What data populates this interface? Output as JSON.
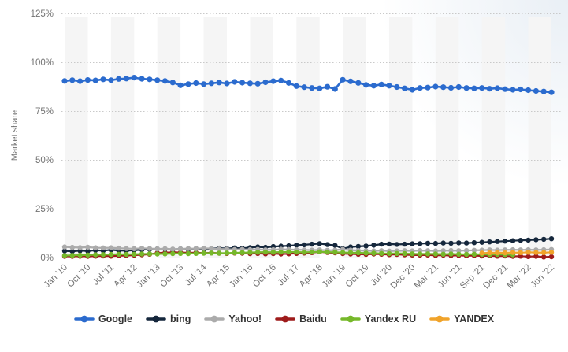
{
  "chart_data": {
    "type": "line",
    "title": "",
    "ylabel": "Market share",
    "xlabel": "",
    "ylim": [
      0,
      125
    ],
    "ytick_values": [
      0,
      25,
      50,
      75,
      100,
      125
    ],
    "ytick_labels": [
      "0%",
      "25%",
      "50%",
      "75%",
      "100%",
      "125%"
    ],
    "x_tick_labels": [
      "Jan '10",
      "Oct '10",
      "Jul '11",
      "Apr '12",
      "Jan '13",
      "Oct '13",
      "Jul '14",
      "Apr '15",
      "Jan '16",
      "Oct '16",
      "Jul '17",
      "Apr '18",
      "Jan '19",
      "Oct '19",
      "Jul '20",
      "Dec '20",
      "Mar '21",
      "Jun '21",
      "Sep '21",
      "Dec '21",
      "Mar '22",
      "Jun '22"
    ],
    "x_points_per_tick": 3,
    "grid": "horizontal-dotted",
    "plot_background": "alternating-vertical-stripes",
    "stripe_color": "#f5f5f5",
    "legend_position": "bottom",
    "series": [
      {
        "name": "Google",
        "color": "#2b6bce",
        "marker_radius": 3.6,
        "line_width": 2.6,
        "values": [
          90.4,
          90.8,
          90.3,
          90.9,
          90.7,
          91.2,
          90.8,
          91.4,
          91.6,
          92.1,
          91.5,
          91.2,
          90.8,
          90.4,
          89.6,
          88.2,
          88.8,
          89.3,
          88.8,
          89.2,
          89.6,
          89.1,
          89.9,
          89.5,
          89.2,
          89.0,
          89.7,
          90.3,
          90.6,
          89.4,
          87.8,
          87.2,
          86.8,
          86.6,
          87.4,
          86.3,
          91.0,
          90.2,
          89.4,
          88.4,
          88.0,
          88.6,
          88.0,
          87.3,
          86.6,
          85.9,
          86.8,
          87.0,
          87.5,
          87.2,
          86.9,
          87.3,
          86.8,
          86.6,
          86.8,
          86.4,
          86.7,
          86.2,
          85.9,
          86.1,
          85.7,
          85.3,
          85.0,
          84.6
        ]
      },
      {
        "name": "bing",
        "color": "#15273c",
        "marker_radius": 3.2,
        "line_width": 2.2,
        "values": [
          3.4,
          3.2,
          3.5,
          3.3,
          3.7,
          3.5,
          3.9,
          3.6,
          3.5,
          3.7,
          4.0,
          4.2,
          4.4,
          4.3,
          4.1,
          4.4,
          4.2,
          4.5,
          4.3,
          4.6,
          4.8,
          4.6,
          4.9,
          4.7,
          5.1,
          5.4,
          5.2,
          5.6,
          5.8,
          6.0,
          6.3,
          6.5,
          6.8,
          7.1,
          6.6,
          6.2,
          4.5,
          5.4,
          5.7,
          5.9,
          6.3,
          6.8,
          6.9,
          6.7,
          6.8,
          7.0,
          7.1,
          7.3,
          7.2,
          7.4,
          7.3,
          7.5,
          7.4,
          7.6,
          7.8,
          8.0,
          8.2,
          8.4,
          8.6,
          8.8,
          8.9,
          9.1,
          9.3,
          9.6
        ]
      },
      {
        "name": "Yahoo!",
        "color": "#ababab",
        "marker_radius": 3.2,
        "line_width": 2.2,
        "values": [
          5.4,
          5.2,
          5.1,
          5.3,
          5.0,
          4.9,
          5.0,
          4.8,
          4.6,
          4.5,
          4.7,
          4.6,
          4.4,
          4.5,
          4.3,
          4.4,
          4.6,
          4.5,
          4.7,
          4.6,
          4.4,
          4.3,
          4.1,
          4.2,
          4.0,
          4.1,
          3.9,
          4.0,
          4.2,
          4.1,
          4.0,
          3.9,
          3.8,
          3.9,
          3.7,
          3.8,
          4.2,
          3.8,
          3.6,
          3.5,
          3.4,
          3.5,
          3.3,
          3.4,
          3.5,
          3.4,
          3.6,
          3.5,
          3.4,
          3.5,
          3.6,
          3.5,
          3.6,
          3.7,
          3.8,
          3.9,
          3.8,
          3.9,
          4.0,
          3.9,
          4.0,
          3.9,
          4.0,
          4.1
        ]
      },
      {
        "name": "Baidu",
        "color": "#9e1b1b",
        "marker_radius": 3.2,
        "line_width": 2.2,
        "values": [
          0.6,
          0.6,
          0.7,
          0.6,
          0.7,
          0.8,
          0.7,
          0.9,
          1.0,
          1.2,
          1.4,
          1.7,
          2.3,
          2.5,
          2.7,
          2.6,
          2.4,
          2.5,
          2.3,
          2.4,
          2.2,
          2.1,
          2.3,
          2.2,
          2.0,
          2.1,
          1.9,
          2.0,
          1.8,
          1.9,
          2.1,
          2.3,
          2.5,
          2.9,
          2.6,
          2.4,
          2.0,
          1.8,
          1.7,
          1.6,
          1.8,
          1.7,
          1.5,
          1.6,
          1.4,
          1.3,
          1.2,
          1.3,
          1.1,
          1.2,
          1.0,
          1.1,
          0.9,
          1.0,
          0.8,
          0.9,
          0.7,
          0.8,
          0.6,
          0.7,
          0.5,
          0.6,
          0.3,
          0.4
        ]
      },
      {
        "name": "Yandex RU",
        "color": "#76b82a",
        "marker_radius": 3.2,
        "line_width": 2.2,
        "values": [
          1.0,
          1.1,
          1.2,
          1.3,
          1.4,
          1.5,
          1.6,
          1.7,
          1.6,
          1.7,
          1.8,
          1.9,
          1.8,
          1.9,
          2.0,
          2.1,
          2.0,
          2.1,
          2.2,
          2.3,
          2.2,
          2.3,
          2.4,
          2.5,
          2.6,
          2.7,
          2.8,
          2.7,
          2.8,
          2.9,
          2.8,
          2.7,
          2.8,
          2.9,
          2.8,
          2.7,
          2.6,
          2.5,
          2.4,
          2.3,
          2.2,
          2.1,
          2.0,
          2.1,
          2.0,
          1.9,
          1.8,
          1.9,
          1.8,
          1.7,
          1.8,
          1.7,
          1.6,
          1.7,
          1.6,
          1.5,
          1.6,
          1.5,
          1.4,
          null,
          null,
          null,
          null,
          null
        ]
      },
      {
        "name": "YANDEX",
        "color": "#f0a32a",
        "marker_radius": 3.2,
        "line_width": 2.2,
        "values": [
          null,
          null,
          null,
          null,
          null,
          null,
          null,
          null,
          null,
          null,
          null,
          null,
          null,
          null,
          null,
          null,
          null,
          null,
          null,
          null,
          null,
          null,
          null,
          null,
          null,
          null,
          null,
          null,
          null,
          null,
          null,
          null,
          null,
          null,
          null,
          null,
          null,
          null,
          null,
          null,
          null,
          null,
          null,
          null,
          null,
          null,
          null,
          null,
          null,
          null,
          null,
          null,
          null,
          null,
          2.3,
          2.4,
          2.5,
          2.4,
          2.6,
          2.5,
          2.7,
          2.6,
          2.5,
          2.7
        ]
      }
    ],
    "draw_order": [
      3,
      1,
      2,
      4,
      5,
      0
    ]
  },
  "style": {
    "axis_text_color": "#737373",
    "axis_line_color": "#1a1a1a",
    "gridline_color": "#c9c9c9",
    "legend_text_color": "#333333"
  }
}
